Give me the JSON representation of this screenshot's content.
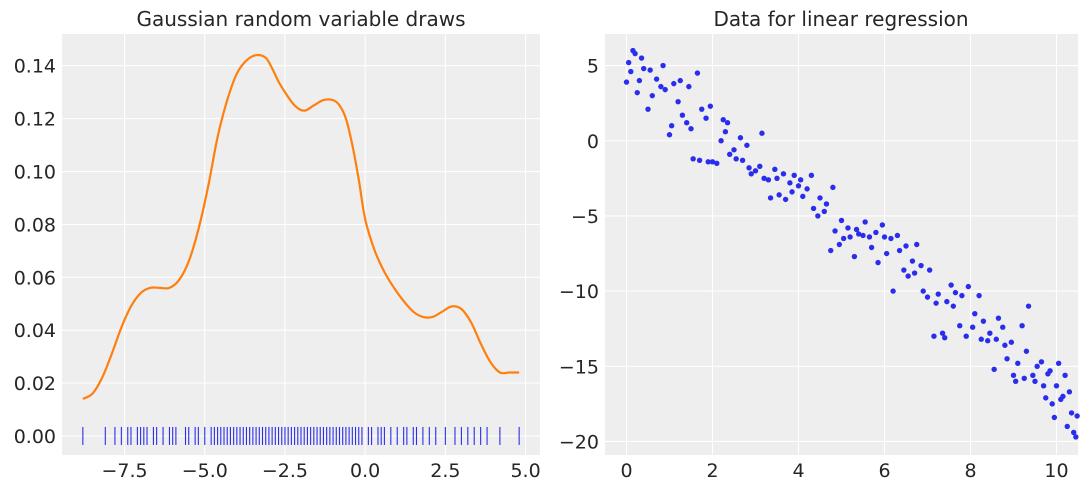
{
  "chart_data": [
    {
      "type": "line",
      "title": "Gaussian random variable draws",
      "xlabel": "",
      "ylabel": "",
      "xlim": [
        -9.45,
        5.45
      ],
      "ylim": [
        -0.0072,
        0.152
      ],
      "xticks": [
        -7.5,
        -5.0,
        -2.5,
        0.0,
        2.5,
        5.0
      ],
      "xtick_labels": [
        "−7.5",
        "−5.0",
        "−2.5",
        "0.0",
        "2.5",
        "5.0"
      ],
      "yticks": [
        0.0,
        0.02,
        0.04,
        0.06,
        0.08,
        0.1,
        0.12,
        0.14
      ],
      "ytick_labels": [
        "0.00",
        "0.02",
        "0.04",
        "0.06",
        "0.08",
        "0.10",
        "0.12",
        "0.14"
      ],
      "grid": true,
      "colors": {
        "line": "#ff7f0e",
        "rug": "#2a2eec",
        "background": "#eeeeee"
      },
      "series": [
        {
          "kind": "kde",
          "x": [
            -8.8,
            -8.5,
            -8.2,
            -7.9,
            -7.6,
            -7.3,
            -7.0,
            -6.7,
            -6.4,
            -6.1,
            -5.8,
            -5.5,
            -5.2,
            -4.9,
            -4.6,
            -4.3,
            -4.0,
            -3.7,
            -3.4,
            -3.1,
            -2.9,
            -2.7,
            -2.5,
            -2.2,
            -1.9,
            -1.6,
            -1.3,
            -1.0,
            -0.8,
            -0.6,
            -0.4,
            -0.2,
            0.0,
            0.3,
            0.6,
            0.9,
            1.2,
            1.5,
            1.8,
            2.1,
            2.4,
            2.7,
            3.0,
            3.3,
            3.6,
            3.9,
            4.2,
            4.5,
            4.8
          ],
          "y": [
            0.014,
            0.016,
            0.022,
            0.031,
            0.041,
            0.049,
            0.054,
            0.056,
            0.056,
            0.056,
            0.059,
            0.066,
            0.078,
            0.094,
            0.113,
            0.127,
            0.137,
            0.142,
            0.144,
            0.143,
            0.139,
            0.134,
            0.13,
            0.125,
            0.123,
            0.125,
            0.127,
            0.127,
            0.125,
            0.12,
            0.11,
            0.097,
            0.082,
            0.07,
            0.062,
            0.056,
            0.051,
            0.047,
            0.045,
            0.045,
            0.047,
            0.049,
            0.048,
            0.043,
            0.035,
            0.028,
            0.024,
            0.024,
            0.024
          ]
        },
        {
          "kind": "rug",
          "y": 0.0,
          "x": [
            -8.8,
            -8.1,
            -7.8,
            -7.6,
            -7.4,
            -7.3,
            -7.1,
            -7.0,
            -6.9,
            -6.8,
            -6.6,
            -6.5,
            -6.3,
            -6.1,
            -6.0,
            -5.9,
            -5.6,
            -5.5,
            -5.3,
            -5.2,
            -5.0,
            -4.8,
            -4.7,
            -4.6,
            -4.5,
            -4.4,
            -4.3,
            -4.2,
            -4.1,
            -4.0,
            -3.9,
            -3.8,
            -3.7,
            -3.6,
            -3.5,
            -3.4,
            -3.3,
            -3.2,
            -3.1,
            -3.0,
            -2.9,
            -2.8,
            -2.7,
            -2.6,
            -2.5,
            -2.4,
            -2.3,
            -2.2,
            -2.1,
            -2.0,
            -1.9,
            -1.8,
            -1.7,
            -1.6,
            -1.5,
            -1.4,
            -1.3,
            -1.2,
            -1.1,
            -1.0,
            -0.9,
            -0.8,
            -0.7,
            -0.6,
            -0.5,
            -0.4,
            -0.3,
            -0.2,
            -0.1,
            0.1,
            0.2,
            0.4,
            0.5,
            0.6,
            0.8,
            1.0,
            1.2,
            1.3,
            1.5,
            1.6,
            1.8,
            2.0,
            2.2,
            2.5,
            2.8,
            3.0,
            3.2,
            3.4,
            3.6,
            3.8,
            4.2,
            4.8
          ]
        }
      ]
    },
    {
      "type": "scatter",
      "title": "Data for linear regression",
      "xlabel": "",
      "ylabel": "",
      "xlim": [
        -0.5,
        10.5
      ],
      "ylim": [
        -20.9,
        7.1
      ],
      "xticks": [
        0,
        2,
        4,
        6,
        8,
        10
      ],
      "xtick_labels": [
        "0",
        "2",
        "4",
        "6",
        "8",
        "10"
      ],
      "yticks": [
        5,
        0,
        -5,
        -10,
        -15,
        -20
      ],
      "ytick_labels": [
        "5",
        "0",
        "−5",
        "−10",
        "−15",
        "−20"
      ],
      "grid": true,
      "colors": {
        "marker": "#2a2eec",
        "background": "#eeeeee"
      },
      "points": [
        [
          0.0,
          3.9
        ],
        [
          0.05,
          5.2
        ],
        [
          0.1,
          4.6
        ],
        [
          0.15,
          6.0
        ],
        [
          0.2,
          5.8
        ],
        [
          0.25,
          3.2
        ],
        [
          0.3,
          4.0
        ],
        [
          0.35,
          5.5
        ],
        [
          0.4,
          4.8
        ],
        [
          0.5,
          2.1
        ],
        [
          0.55,
          4.7
        ],
        [
          0.6,
          3.0
        ],
        [
          0.7,
          4.1
        ],
        [
          0.8,
          3.6
        ],
        [
          0.85,
          5.0
        ],
        [
          0.9,
          3.4
        ],
        [
          1.0,
          0.4
        ],
        [
          1.05,
          1.0
        ],
        [
          1.1,
          3.8
        ],
        [
          1.2,
          2.6
        ],
        [
          1.25,
          4.0
        ],
        [
          1.3,
          1.7
        ],
        [
          1.4,
          1.2
        ],
        [
          1.45,
          3.6
        ],
        [
          1.5,
          0.8
        ],
        [
          1.55,
          -1.2
        ],
        [
          1.65,
          4.5
        ],
        [
          1.7,
          -1.3
        ],
        [
          1.75,
          2.1
        ],
        [
          1.85,
          1.5
        ],
        [
          1.9,
          -1.4
        ],
        [
          1.95,
          2.3
        ],
        [
          2.0,
          -1.4
        ],
        [
          2.1,
          -1.5
        ],
        [
          2.2,
          0.0
        ],
        [
          2.25,
          1.4
        ],
        [
          2.3,
          0.6
        ],
        [
          2.35,
          1.2
        ],
        [
          2.4,
          -0.9
        ],
        [
          2.5,
          -0.6
        ],
        [
          2.55,
          -1.2
        ],
        [
          2.65,
          0.2
        ],
        [
          2.7,
          -1.3
        ],
        [
          2.8,
          -0.3
        ],
        [
          2.85,
          -1.8
        ],
        [
          2.9,
          -2.2
        ],
        [
          3.0,
          -2.0
        ],
        [
          3.1,
          -1.7
        ],
        [
          3.15,
          0.5
        ],
        [
          3.2,
          -2.5
        ],
        [
          3.3,
          -2.6
        ],
        [
          3.35,
          -3.8
        ],
        [
          3.45,
          -1.9
        ],
        [
          3.5,
          -2.5
        ],
        [
          3.55,
          -3.6
        ],
        [
          3.65,
          -2.2
        ],
        [
          3.7,
          -3.9
        ],
        [
          3.8,
          -2.8
        ],
        [
          3.85,
          -3.4
        ],
        [
          3.9,
          -2.3
        ],
        [
          4.0,
          -3.0
        ],
        [
          4.05,
          -2.6
        ],
        [
          4.1,
          -3.7
        ],
        [
          4.2,
          -3.2
        ],
        [
          4.3,
          -2.3
        ],
        [
          4.35,
          -4.5
        ],
        [
          4.45,
          -5.0
        ],
        [
          4.5,
          -3.8
        ],
        [
          4.6,
          -4.7
        ],
        [
          4.65,
          -4.2
        ],
        [
          4.75,
          -7.3
        ],
        [
          4.8,
          -3.1
        ],
        [
          4.85,
          -6.0
        ],
        [
          4.95,
          -6.9
        ],
        [
          5.0,
          -5.3
        ],
        [
          5.05,
          -6.5
        ],
        [
          5.15,
          -5.8
        ],
        [
          5.2,
          -6.4
        ],
        [
          5.3,
          -7.7
        ],
        [
          5.35,
          -5.9
        ],
        [
          5.4,
          -6.2
        ],
        [
          5.5,
          -6.3
        ],
        [
          5.55,
          -5.4
        ],
        [
          5.65,
          -6.4
        ],
        [
          5.7,
          -7.1
        ],
        [
          5.8,
          -6.1
        ],
        [
          5.85,
          -8.1
        ],
        [
          5.95,
          -5.6
        ],
        [
          6.0,
          -6.4
        ],
        [
          6.05,
          -7.5
        ],
        [
          6.15,
          -6.5
        ],
        [
          6.2,
          -10.0
        ],
        [
          6.3,
          -6.3
        ],
        [
          6.35,
          -7.3
        ],
        [
          6.45,
          -8.6
        ],
        [
          6.5,
          -7.0
        ],
        [
          6.55,
          -9.0
        ],
        [
          6.65,
          -8.0
        ],
        [
          6.7,
          -8.8
        ],
        [
          6.75,
          -6.9
        ],
        [
          6.85,
          -8.3
        ],
        [
          6.9,
          -10.0
        ],
        [
          7.0,
          -10.4
        ],
        [
          7.05,
          -8.6
        ],
        [
          7.15,
          -13.0
        ],
        [
          7.2,
          -10.8
        ],
        [
          7.25,
          -10.2
        ],
        [
          7.35,
          -12.8
        ],
        [
          7.4,
          -13.1
        ],
        [
          7.45,
          -10.7
        ],
        [
          7.55,
          -9.6
        ],
        [
          7.6,
          -11.0
        ],
        [
          7.65,
          -10.1
        ],
        [
          7.75,
          -12.3
        ],
        [
          7.8,
          -10.3
        ],
        [
          7.9,
          -13.0
        ],
        [
          7.95,
          -9.7
        ],
        [
          8.05,
          -12.4
        ],
        [
          8.1,
          -11.5
        ],
        [
          8.2,
          -10.3
        ],
        [
          8.25,
          -13.2
        ],
        [
          8.3,
          -12.0
        ],
        [
          8.4,
          -13.3
        ],
        [
          8.45,
          -12.8
        ],
        [
          8.55,
          -15.2
        ],
        [
          8.6,
          -13.2
        ],
        [
          8.65,
          -11.8
        ],
        [
          8.75,
          -12.4
        ],
        [
          8.8,
          -13.6
        ],
        [
          8.85,
          -14.5
        ],
        [
          8.95,
          -13.4
        ],
        [
          9.0,
          -15.6
        ],
        [
          9.05,
          -16.0
        ],
        [
          9.1,
          -14.8
        ],
        [
          9.2,
          -12.3
        ],
        [
          9.25,
          -15.8
        ],
        [
          9.3,
          -14.0
        ],
        [
          9.35,
          -11.0
        ],
        [
          9.45,
          -15.6
        ],
        [
          9.5,
          -16.0
        ],
        [
          9.55,
          -15.0
        ],
        [
          9.65,
          -14.7
        ],
        [
          9.7,
          -16.3
        ],
        [
          9.75,
          -17.1
        ],
        [
          9.8,
          -15.5
        ],
        [
          9.85,
          -15.3
        ],
        [
          9.9,
          -17.5
        ],
        [
          9.95,
          -18.4
        ],
        [
          10.0,
          -16.3
        ],
        [
          10.05,
          -14.8
        ],
        [
          10.1,
          -17.2
        ],
        [
          10.15,
          -17.0
        ],
        [
          10.2,
          -15.6
        ],
        [
          10.25,
          -19.0
        ],
        [
          10.3,
          -16.7
        ],
        [
          10.35,
          -18.1
        ],
        [
          10.4,
          -19.4
        ],
        [
          10.45,
          -19.7
        ],
        [
          10.48,
          -18.3
        ]
      ]
    }
  ]
}
